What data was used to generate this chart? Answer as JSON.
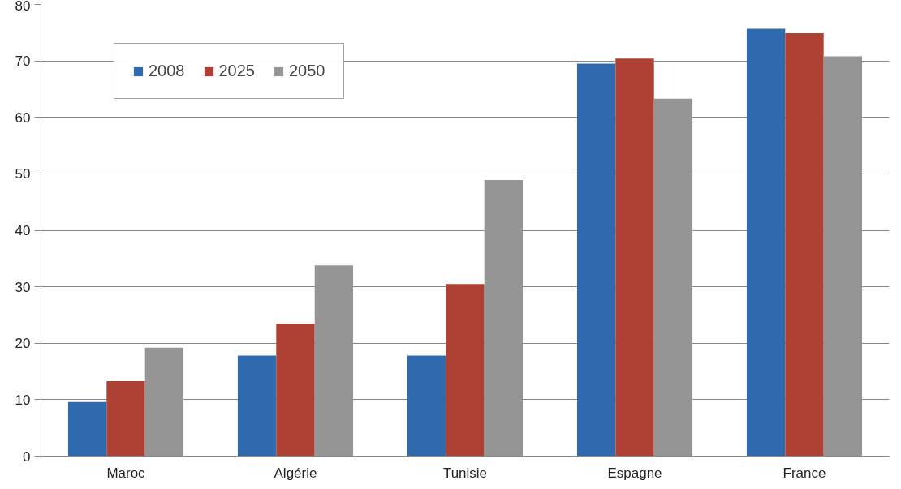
{
  "chart_data": {
    "type": "bar",
    "categories": [
      "Maroc",
      "Algérie",
      "Tunisie",
      "Espagne",
      "France"
    ],
    "series": [
      {
        "name": "2008",
        "color": "#2e6aad",
        "values": [
          9.6,
          17.8,
          17.8,
          69.5,
          75.7
        ]
      },
      {
        "name": "2025",
        "color": "#ae4034",
        "values": [
          13.3,
          23.5,
          30.5,
          70.4,
          74.9
        ]
      },
      {
        "name": "2050",
        "color": "#959595",
        "values": [
          19.2,
          33.8,
          48.9,
          63.3,
          70.8
        ]
      }
    ],
    "ylim": [
      0,
      80
    ],
    "yticks": [
      0,
      10,
      20,
      30,
      40,
      50,
      60,
      70,
      80
    ],
    "grid": "y",
    "legend": "top left"
  }
}
